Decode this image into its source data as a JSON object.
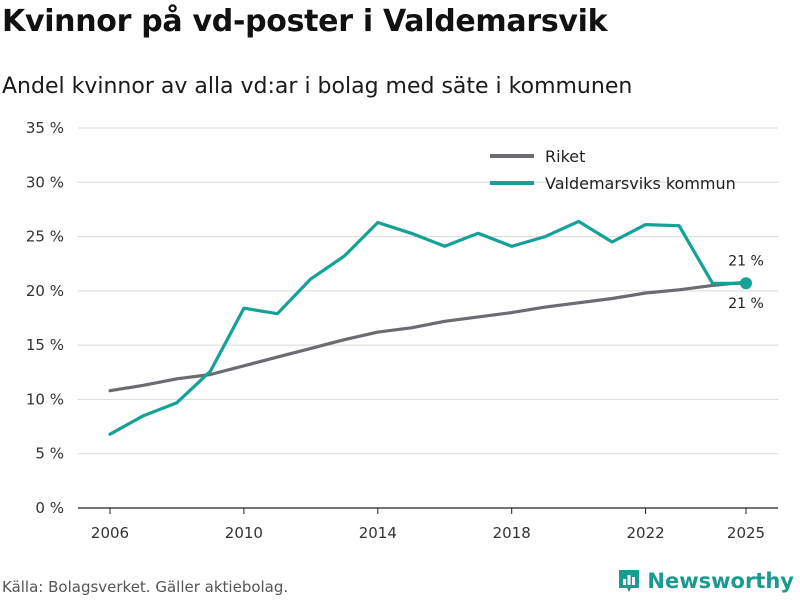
{
  "title": "Kvinnor på vd-poster i Valdemarsvik",
  "subtitle": "Andel kvinnor av alla vd:ar i bolag med säte i kommunen",
  "source": "Källa: Bolagsverket. Gäller aktiebolag.",
  "brand": {
    "name": "Newsworthy",
    "icon": "bar-chart-logo-icon",
    "color": "#1a9b8f"
  },
  "chart_data": {
    "type": "line",
    "title": "Kvinnor på vd-poster i Valdemarsvik",
    "xlabel": "",
    "ylabel": "",
    "x": [
      2006,
      2007,
      2008,
      2009,
      2010,
      2011,
      2012,
      2013,
      2014,
      2015,
      2016,
      2017,
      2018,
      2019,
      2020,
      2021,
      2022,
      2023,
      2024,
      2025
    ],
    "xticks": [
      2006,
      2010,
      2014,
      2018,
      2022,
      2025
    ],
    "xtick_labels": [
      "2006",
      "2010",
      "2014",
      "2018",
      "2022",
      "2025"
    ],
    "ylim": [
      0,
      35
    ],
    "yticks": [
      0,
      5,
      10,
      15,
      20,
      25,
      30,
      35
    ],
    "ytick_labels": [
      "0 %",
      "5 %",
      "10 %",
      "15 %",
      "20 %",
      "25 %",
      "30 %",
      "35 %"
    ],
    "grid": true,
    "legend_position": "top-right",
    "series": [
      {
        "name": "Riket",
        "color": "#6b6b72",
        "values": [
          10.8,
          11.3,
          11.9,
          12.3,
          13.1,
          13.9,
          14.7,
          15.5,
          16.2,
          16.6,
          17.2,
          17.6,
          18.0,
          18.5,
          18.9,
          19.3,
          19.8,
          20.1,
          20.5,
          20.8
        ]
      },
      {
        "name": "Valdemarsviks kommun",
        "color": "#14a196",
        "values": [
          6.8,
          8.5,
          9.7,
          12.6,
          18.4,
          17.9,
          21.1,
          23.2,
          26.3,
          25.3,
          24.1,
          25.3,
          24.1,
          25.0,
          26.4,
          24.5,
          26.1,
          26.0,
          20.7,
          20.7
        ]
      }
    ],
    "annotations": [
      {
        "label": "21 %",
        "series": "Valdemarsviks kommun",
        "x": 2025,
        "placement": "above"
      },
      {
        "label": "21 %",
        "series": "Riket",
        "x": 2025,
        "placement": "below"
      }
    ]
  }
}
